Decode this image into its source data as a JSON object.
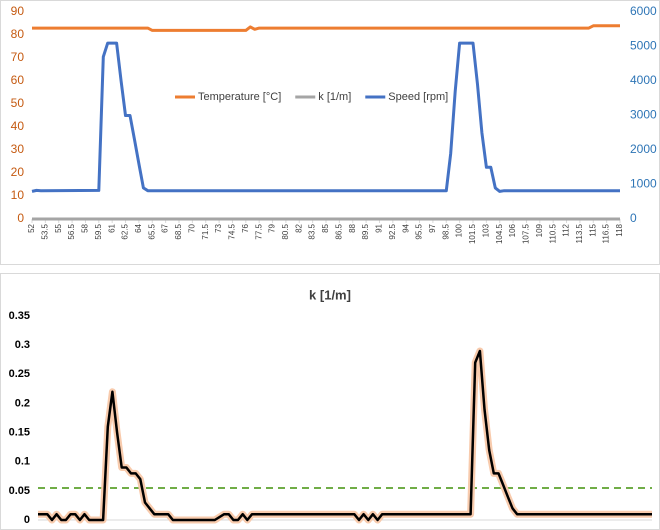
{
  "chart_data": [
    {
      "type": "line",
      "series": [
        {
          "name": "Temperature [°C]",
          "color": "#ed7d31",
          "x": [
            52,
            65,
            65.5,
            76,
            76.5,
            77,
            77.5,
            114.5,
            115,
            118
          ],
          "values": [
            83,
            83,
            82,
            82,
            83.5,
            82.5,
            83,
            83,
            84,
            84
          ]
        },
        {
          "name": "k [1/m]",
          "color": "#a5a5a5",
          "x": [
            52,
            118
          ],
          "values": [
            0,
            0
          ]
        },
        {
          "name": "Speed [rpm]",
          "color": "#4472c4",
          "axis": "y2",
          "x": [
            52,
            52.5,
            53,
            59.5,
            60,
            60.5,
            61.5,
            62,
            62.5,
            63,
            63.5,
            64,
            64.5,
            65,
            98.5,
            99,
            99.5,
            100,
            101.5,
            102,
            102.5,
            103,
            103.5,
            104,
            104.5,
            105,
            118
          ],
          "values": [
            800,
            830,
            820,
            830,
            4700,
            5100,
            5100,
            4000,
            3000,
            3000,
            2300,
            1600,
            900,
            820,
            820,
            1900,
            3700,
            5100,
            5100,
            3900,
            2500,
            1500,
            1500,
            900,
            800,
            820,
            820
          ]
        }
      ],
      "xlim": [
        52,
        118
      ],
      "xticks": [
        52,
        53.5,
        55,
        56.5,
        58,
        59.5,
        61,
        62.5,
        64,
        65.5,
        67,
        68.5,
        70,
        71.5,
        73,
        74.5,
        76,
        77.5,
        79,
        80.5,
        82,
        83.5,
        85,
        86.5,
        88,
        89.5,
        91,
        92.5,
        94,
        95.5,
        97,
        98.5,
        100,
        101.5,
        103,
        104.5,
        106,
        107.5,
        109,
        110.5,
        112,
        113.5,
        115,
        116.5,
        118
      ],
      "ylim": [
        0,
        90
      ],
      "yticks": [
        0,
        10,
        20,
        30,
        40,
        50,
        60,
        70,
        80,
        90
      ],
      "ytick_color": "#c55a11",
      "y2lim": [
        0,
        6000
      ],
      "y2ticks": [
        0,
        1000,
        2000,
        3000,
        4000,
        5000,
        6000
      ],
      "y2tick_color": "#2e75b6",
      "grid": false,
      "legend": "center"
    },
    {
      "type": "line",
      "title": "k [1/m]",
      "series": [
        {
          "name": "k [1/m]",
          "color": "#000000",
          "glow_color": "#f8cbad",
          "x": [
            52,
            53,
            53.5,
            54,
            54.5,
            55,
            55.5,
            56,
            56.5,
            57,
            57.5,
            59,
            59.5,
            60,
            60.5,
            61,
            61.5,
            62,
            62.5,
            63,
            63.5,
            64,
            64.5,
            66,
            66.5,
            71,
            72,
            72.5,
            73,
            73.5,
            74,
            74.5,
            75,
            86,
            86.5,
            87,
            87.5,
            88,
            88.5,
            89,
            98.5,
            99,
            99.5,
            100,
            100.5,
            101,
            101.5,
            102,
            102.5,
            103,
            103.5,
            118
          ],
          "values": [
            0.01,
            0.01,
            0,
            0.01,
            0,
            0,
            0.01,
            0.01,
            0,
            0.01,
            0,
            0,
            0.16,
            0.22,
            0.15,
            0.09,
            0.09,
            0.08,
            0.08,
            0.07,
            0.03,
            0.02,
            0.01,
            0.01,
            0,
            0,
            0.01,
            0.01,
            0,
            0,
            0.01,
            0,
            0.01,
            0.01,
            0,
            0.01,
            0,
            0.01,
            0,
            0.01,
            0.01,
            0.27,
            0.29,
            0.19,
            0.12,
            0.08,
            0.08,
            0.06,
            0.04,
            0.02,
            0.01,
            0.01
          ]
        }
      ],
      "xlim": [
        52,
        118
      ],
      "ylim": [
        0,
        0.35
      ],
      "yticks": [
        0,
        0.05,
        0.1,
        0.15,
        0.2,
        0.25,
        0.3,
        0.35
      ],
      "threshold": 0.055,
      "threshold_color": "#70ad47",
      "grid": false
    }
  ]
}
